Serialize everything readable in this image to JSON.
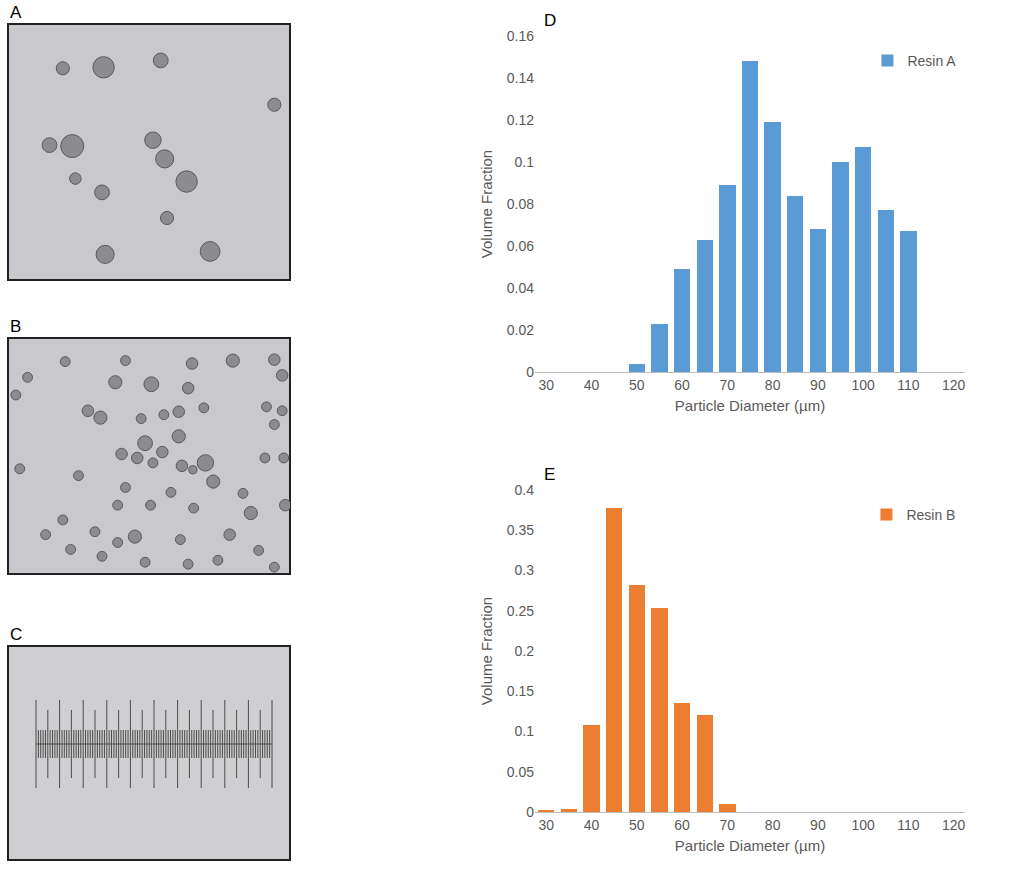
{
  "images": [
    {
      "label": "A"
    },
    {
      "label": "B"
    },
    {
      "label": "C"
    }
  ],
  "chart_data": [
    {
      "panel": "D",
      "type": "bar",
      "x": [
        50,
        55,
        60,
        65,
        70,
        75,
        80,
        85,
        90,
        95,
        100,
        105,
        110
      ],
      "series": [
        {
          "name": "Resin A",
          "color": "#5b9bd5",
          "values": [
            0.004,
            0.023,
            0.049,
            0.063,
            0.089,
            0.148,
            0.119,
            0.084,
            0.068,
            0.1,
            0.107,
            0.077,
            0.067
          ]
        }
      ],
      "x_label": "Particle Diameter (µm)",
      "y_label": "Volume Fraction",
      "xlim": [
        27.5,
        122.5
      ],
      "xticks": [
        30,
        40,
        50,
        60,
        70,
        80,
        90,
        100,
        110,
        120
      ],
      "ylim": [
        0,
        0.16
      ],
      "yticks": [
        0,
        0.02,
        0.04,
        0.06,
        0.08,
        0.1,
        0.12,
        0.14,
        0.16
      ],
      "grid": false,
      "legend": "upper right"
    },
    {
      "panel": "E",
      "type": "bar",
      "x": [
        30,
        35,
        40,
        45,
        50,
        55,
        60,
        65,
        70
      ],
      "series": [
        {
          "name": "Resin B",
          "color": "#ed7d31",
          "values": [
            0.002,
            0.004,
            0.108,
            0.378,
            0.282,
            0.253,
            0.135,
            0.121,
            0.01
          ]
        }
      ],
      "x_label": "Particle Diameter (µm)",
      "y_label": "Volume Fraction",
      "xlim": [
        27.5,
        122.5
      ],
      "xticks": [
        30,
        40,
        50,
        60,
        70,
        80,
        90,
        100,
        110,
        120
      ],
      "ylim": [
        0,
        0.4
      ],
      "yticks": [
        0,
        0.05,
        0.1,
        0.15,
        0.2,
        0.25,
        0.3,
        0.35,
        0.4
      ],
      "grid": false,
      "legend": "upper right"
    }
  ]
}
